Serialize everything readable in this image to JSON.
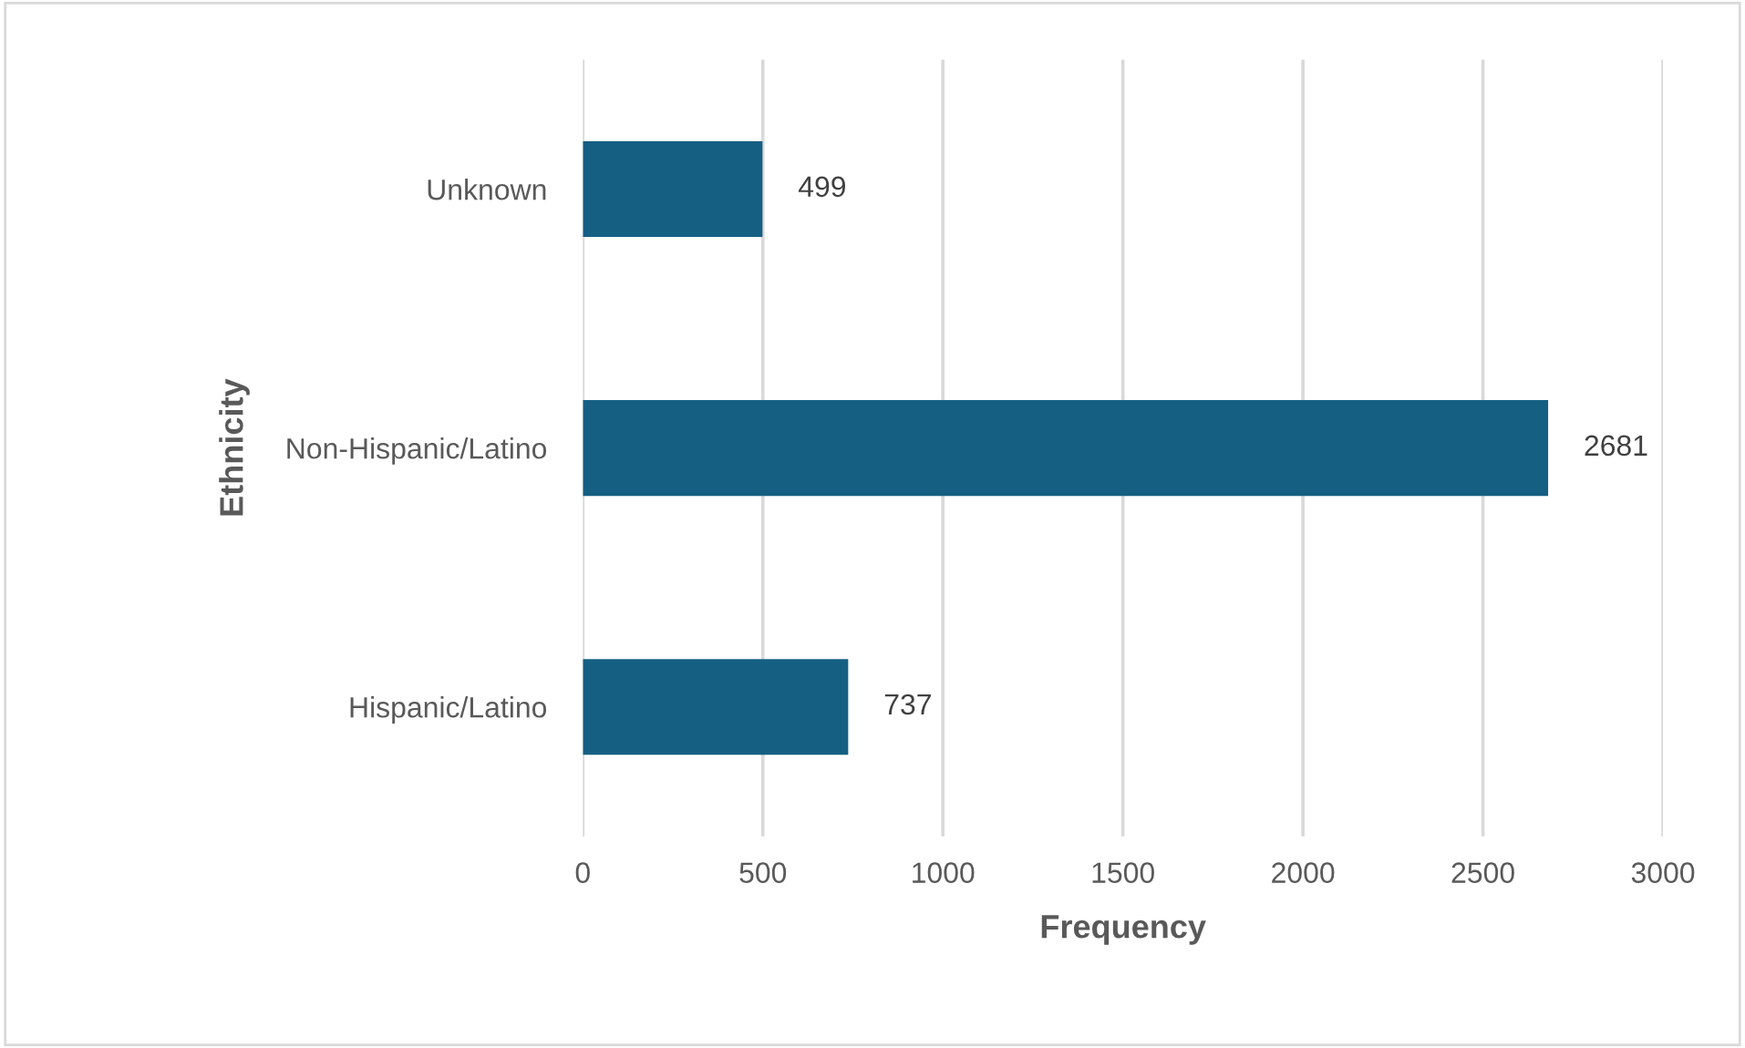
{
  "chart_data": {
    "type": "bar",
    "orientation": "horizontal",
    "xlabel": "Frequency",
    "ylabel": "Ethnicity",
    "categories": [
      "Unknown",
      "Non-Hispanic/Latino",
      "Hispanic/Latino"
    ],
    "values": [
      499,
      2681,
      737
    ],
    "color": "#155f83",
    "xlim": [
      0,
      3000
    ],
    "xticks": [
      0,
      500,
      1000,
      1500,
      2000,
      2500,
      3000
    ],
    "grid": "x",
    "data_labels": true
  }
}
